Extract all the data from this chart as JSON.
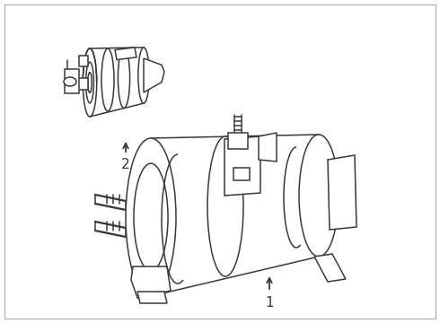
{
  "background_color": "#ffffff",
  "line_color": "#3a3a3a",
  "line_width": 1.1,
  "label1": "1",
  "label2": "2",
  "figsize": [
    4.9,
    3.6
  ],
  "dpi": 100,
  "border_color": "#cccccc"
}
